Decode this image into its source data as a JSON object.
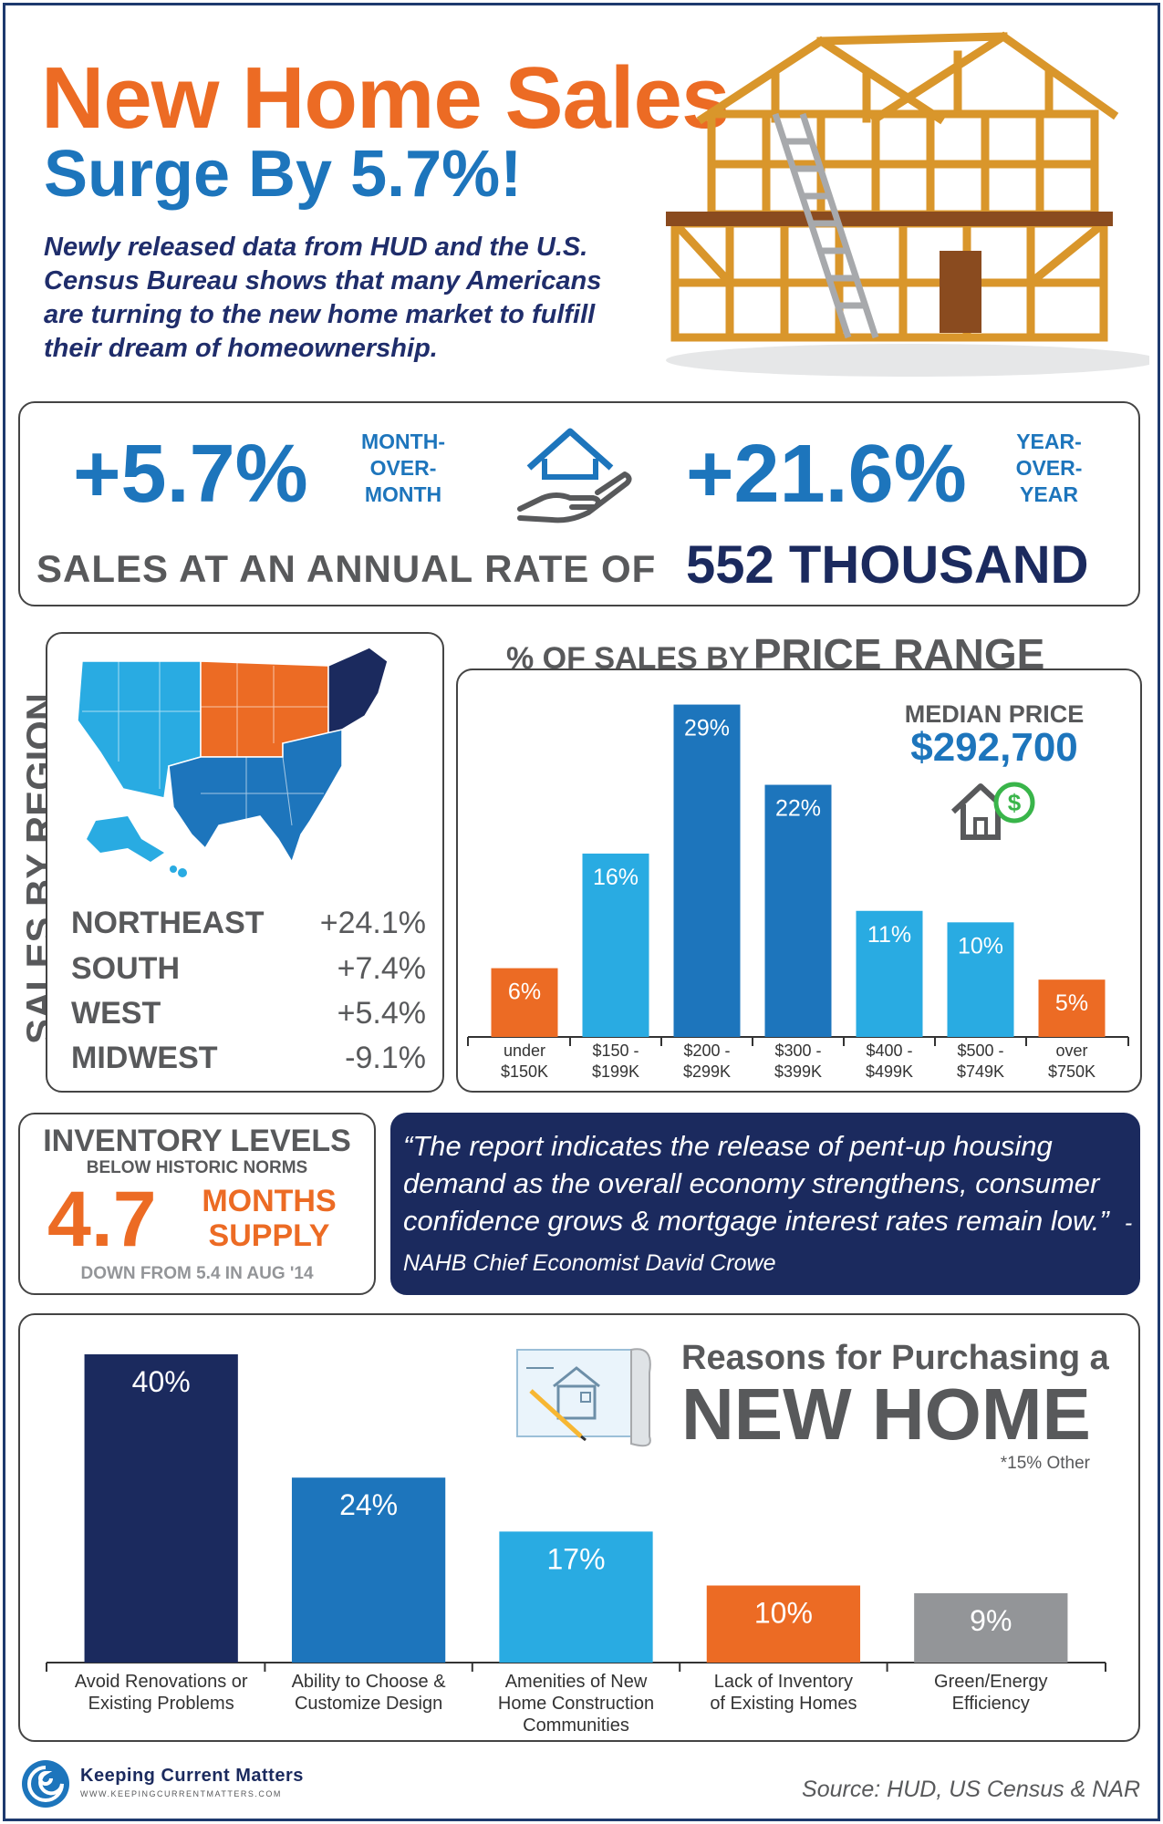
{
  "header": {
    "title_line1": "New Home Sales",
    "title_line2": "Surge By 5.7%!",
    "intro": "Newly released data from HUD and the U.S. Census Bureau shows that many Americans are turning to the new home market to fulfill their dream of homeownership."
  },
  "stats": {
    "mom_value": "+5.7%",
    "mom_label_lines": [
      "MONTH-",
      "OVER-",
      "MONTH"
    ],
    "yoy_value": "+21.6%",
    "yoy_label_lines": [
      "YEAR-",
      "OVER-",
      "YEAR"
    ],
    "annual_rate_label": "SALES AT AN ANNUAL RATE OF",
    "annual_rate_value": "552 THOUSAND"
  },
  "region": {
    "side_title": "SALES BY REGION",
    "items": [
      {
        "name": "NORTHEAST",
        "value": "+24.1%",
        "color": "#1b2a5e"
      },
      {
        "name": "SOUTH",
        "value": "+7.4%",
        "color": "#1d75bc"
      },
      {
        "name": "WEST",
        "value": "+5.4%",
        "color": "#29abe2"
      },
      {
        "name": "MIDWEST",
        "value": "-9.1%",
        "color": "#ec6b24"
      }
    ]
  },
  "price": {
    "title_small": "% OF SALES BY",
    "title_large": "PRICE RANGE",
    "median_label": "MEDIAN PRICE",
    "median_value": "$292,700"
  },
  "inventory": {
    "title": "INVENTORY LEVELS",
    "subtitle": "BELOW HISTORIC NORMS",
    "value": "4.7",
    "unit_lines": [
      "MONTHS",
      "SUPPLY"
    ],
    "footnote": "DOWN FROM 5.4 IN AUG '14"
  },
  "quote": {
    "text": "“The report indicates the release of pent-up housing demand as the overall economy strengthens, consumer confidence grows & mortgage interest rates remain low.”",
    "attribution": "- NAHB Chief Economist David Crowe"
  },
  "reasons": {
    "title_line1": "Reasons for Purchasing a",
    "title_line2": "NEW HOME",
    "note": "*15% Other"
  },
  "footer": {
    "logo_name": "Keeping Current Matters",
    "logo_url": "WWW.KEEPINGCURRENTMATTERS.COM",
    "source": "Source: HUD, US Census & NAR"
  },
  "colors": {
    "orange": "#ec6b24",
    "blue": "#1d75bc",
    "light_blue": "#29abe2",
    "navy": "#1b2a5e",
    "gray": "#939598"
  },
  "chart_data": [
    {
      "type": "bar",
      "title": "% OF SALES BY PRICE RANGE",
      "categories": [
        [
          "under",
          "$150K"
        ],
        [
          "$150 -",
          "$199K"
        ],
        [
          "$200 -",
          "$299K"
        ],
        [
          "$300 -",
          "$399K"
        ],
        [
          "$400 -",
          "$499K"
        ],
        [
          "$500 -",
          "$749K"
        ],
        [
          "over",
          "$750K"
        ]
      ],
      "values": [
        6,
        16,
        29,
        22,
        11,
        10,
        5
      ],
      "value_labels": [
        "6%",
        "16%",
        "29%",
        "22%",
        "11%",
        "10%",
        "5%"
      ],
      "bar_colors": [
        "#ec6b24",
        "#29abe2",
        "#1d75bc",
        "#1d75bc",
        "#29abe2",
        "#29abe2",
        "#ec6b24"
      ],
      "ylim": [
        0,
        30
      ],
      "grid": false
    },
    {
      "type": "bar",
      "title": "Reasons for Purchasing a NEW HOME",
      "categories": [
        [
          "Avoid Renovations or",
          "Existing Problems"
        ],
        [
          "Ability to Choose &",
          "Customize Design"
        ],
        [
          "Amenities of New",
          "Home Construction",
          "Communities"
        ],
        [
          "Lack of Inventory",
          "of Existing Homes"
        ],
        [
          "Green/Energy",
          "Efficiency"
        ]
      ],
      "values": [
        40,
        24,
        17,
        10,
        9
      ],
      "value_labels": [
        "40%",
        "24%",
        "17%",
        "10%",
        "9%"
      ],
      "bar_colors": [
        "#1b2a5e",
        "#1d75bc",
        "#29abe2",
        "#ec6b24",
        "#939598"
      ],
      "ylim": [
        0,
        40
      ],
      "grid": false
    }
  ]
}
